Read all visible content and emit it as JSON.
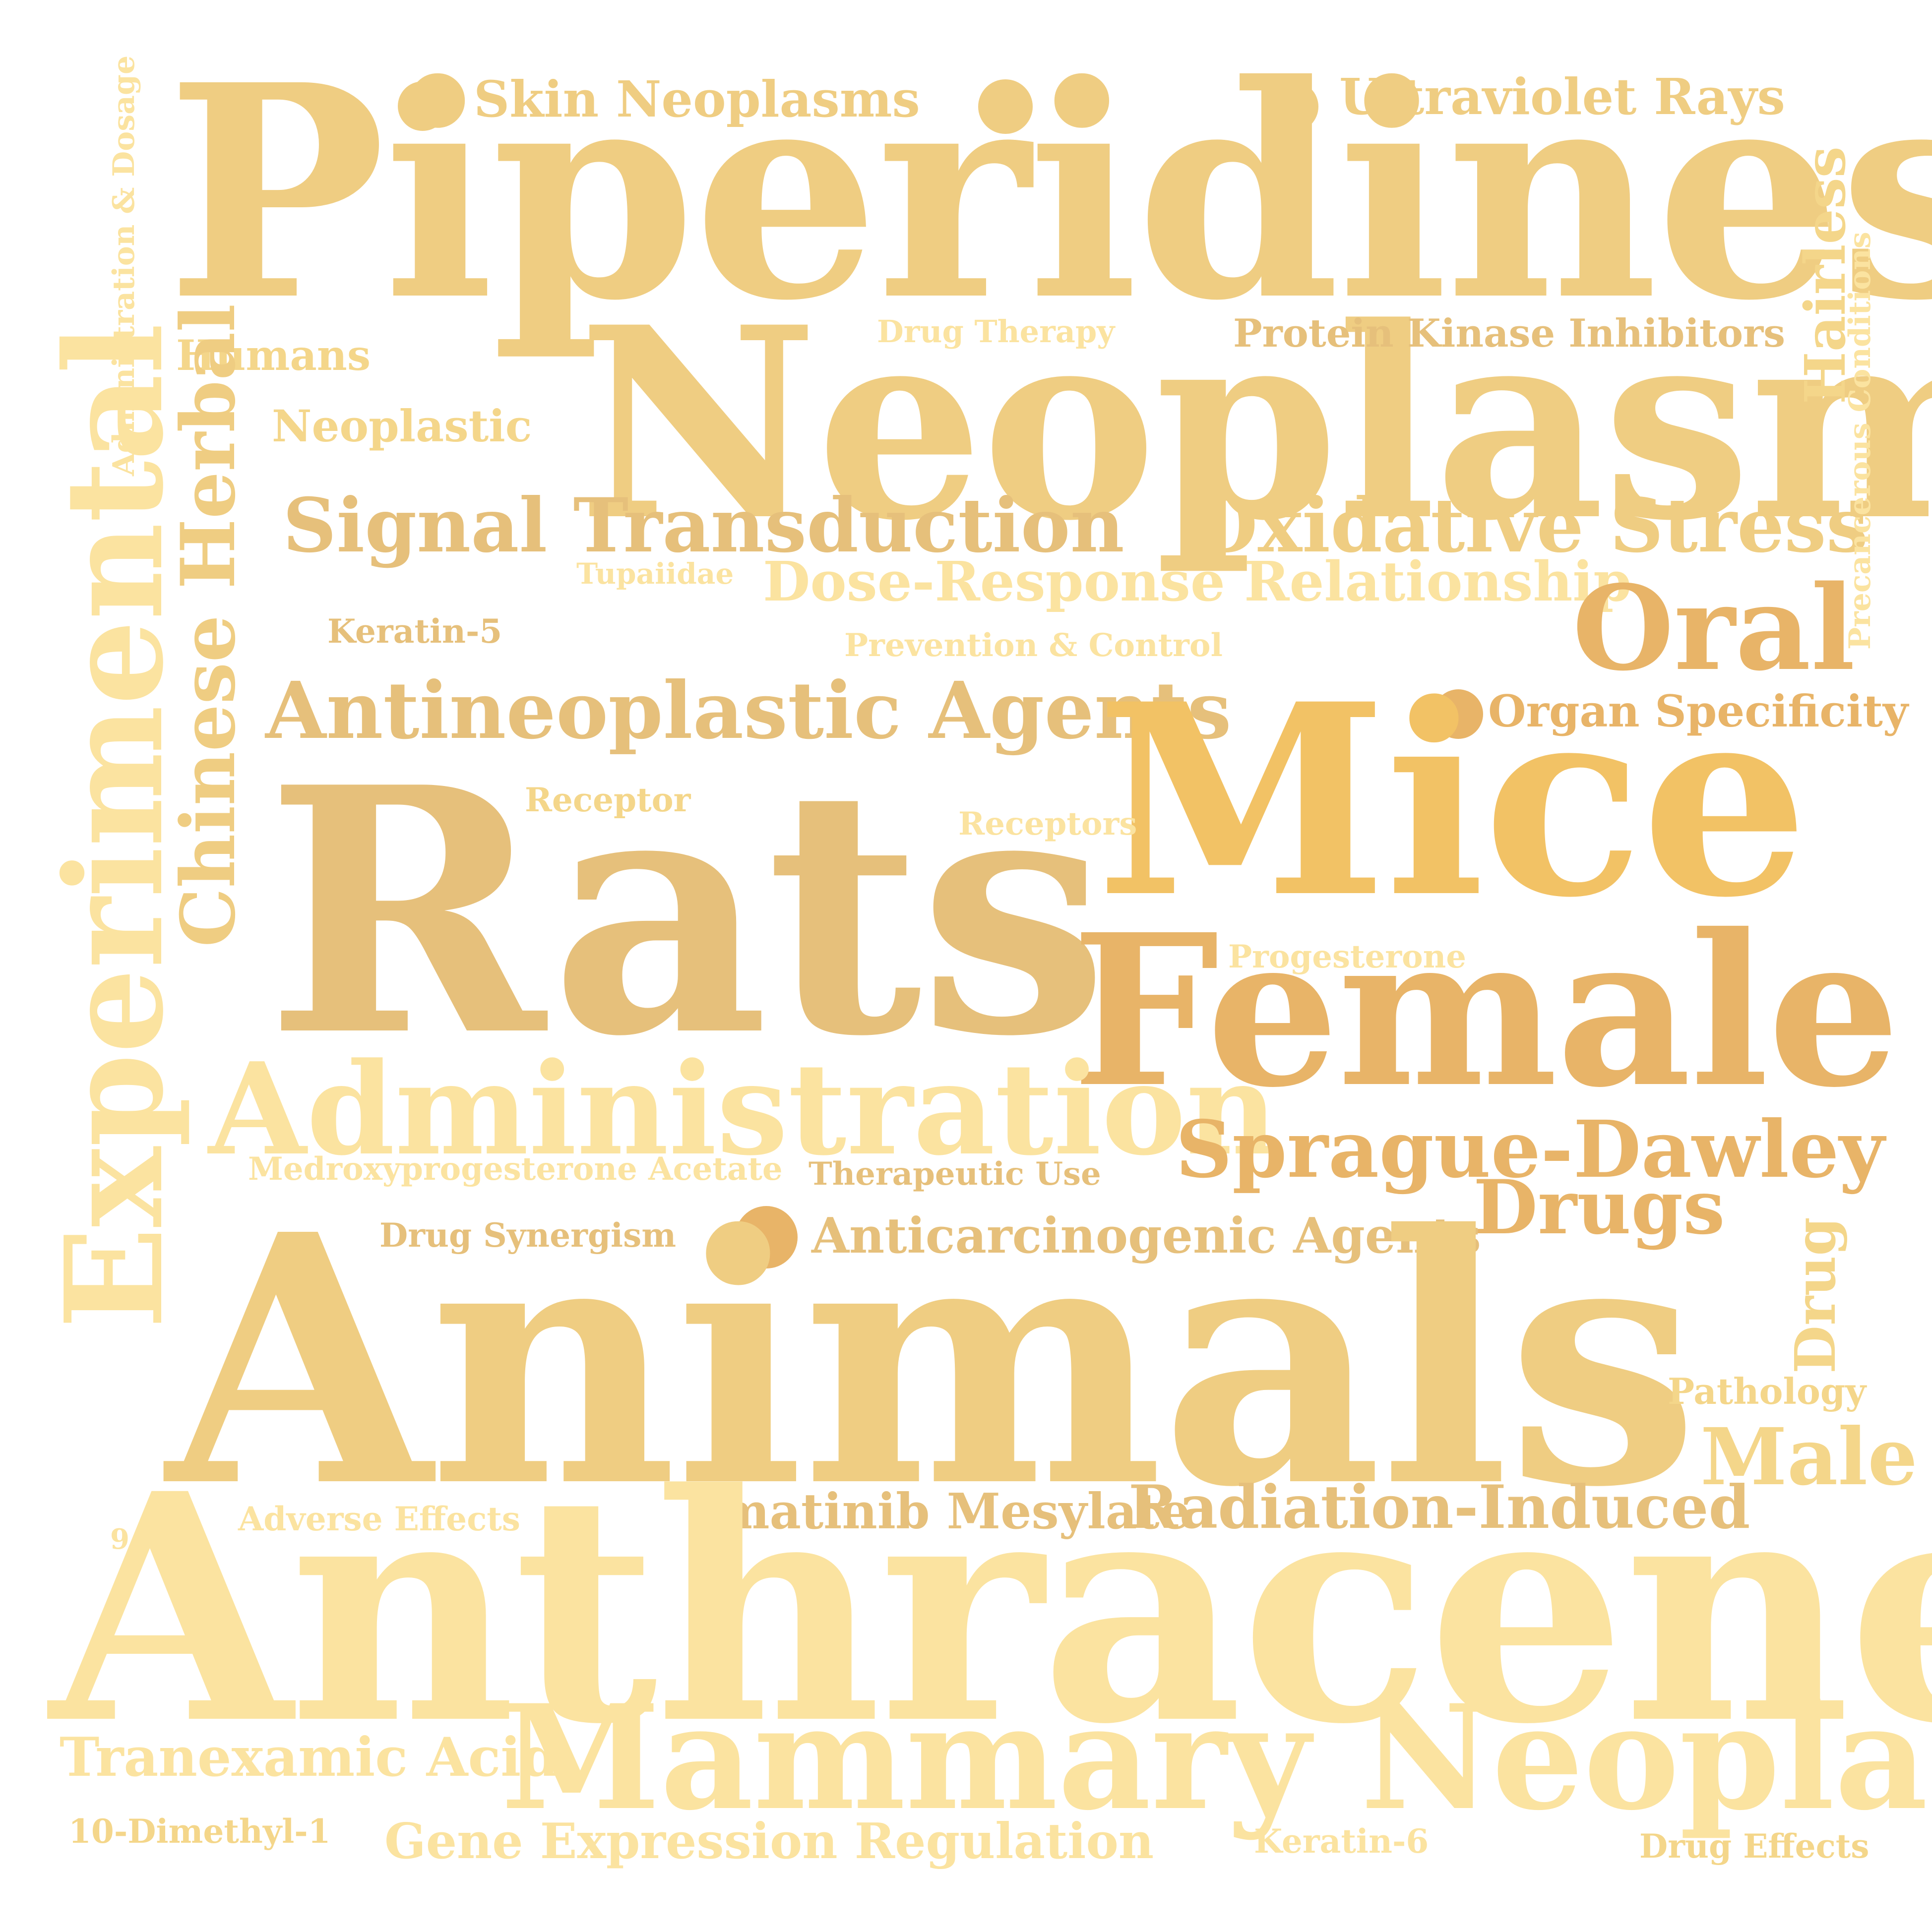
{
  "words": {
    "piperidines": "Piperidines",
    "neoplasms": "Neoplasms",
    "skin_neoplasms": "Skin Neoplasms",
    "ultraviolet_rays": "Ultraviolet Rays",
    "humans": "Humans",
    "drug_therapy": "Drug Therapy",
    "protein_kinase_inhibitors": "Protein Kinase Inhibitors",
    "neoplastic": "Neoplastic",
    "signal_transduction": "Signal Transduction",
    "oxidative_stress": "Oxidative Stress",
    "tupaiidae": "Tupaiidae",
    "dose_response": "Dose-Response Relationship",
    "oral": "Oral",
    "keratin_5": "Keratin-5",
    "prevention_control": "Prevention & Control",
    "antineoplastic_agents": "Antineoplastic Agents",
    "organ_specificity": "Organ Specificity",
    "mice": "Mice",
    "receptor": "Receptor",
    "receptors": "Receptors",
    "rats": "Rats",
    "progesterone": "Progesterone",
    "female": "Female",
    "administration": "Administration",
    "sprague_dawley": "Sprague-Dawley",
    "medroxyprogesterone": "Medroxyprogesterone Acetate",
    "therapeutic_use": "Therapeutic Use",
    "drugs": "Drugs",
    "drug_synergism": "Drug Synergism",
    "anticarcinogenic": "Anticarcinogenic Agents",
    "animals": "Animals",
    "pathology": "Pathology",
    "male": "Male",
    "adverse_effects": "Adverse Effects",
    "imatinib": "Imatinib Mesylate",
    "radiation_induced": "Radiation-Induced",
    "nine": "9",
    "anthracenes": "Anthracenes",
    "tranexamic": "Tranexamic Acid",
    "mammary_neoplasms": "Mammary Neoplasms",
    "dimethyl": "10-Dimethyl-1",
    "gene_expression": "Gene Expression Regulation",
    "keratin_6": "Keratin-6",
    "drug_effects": "Drug Effects",
    "admin_dosage": "Administration & Dosage",
    "experimental": "Experimental",
    "chinese_herbal": "Chinese Herbal",
    "hairless": "Hairless",
    "precancerous": "Precancerous Conditions",
    "drug_vertical": "Drug"
  },
  "palette": {
    "pale": "#fbe3a0",
    "light": "#f4d68a",
    "mid": "#efcd82",
    "tan": "#e6c07b",
    "deep": "#e8b468",
    "gold": "#f2c265"
  }
}
